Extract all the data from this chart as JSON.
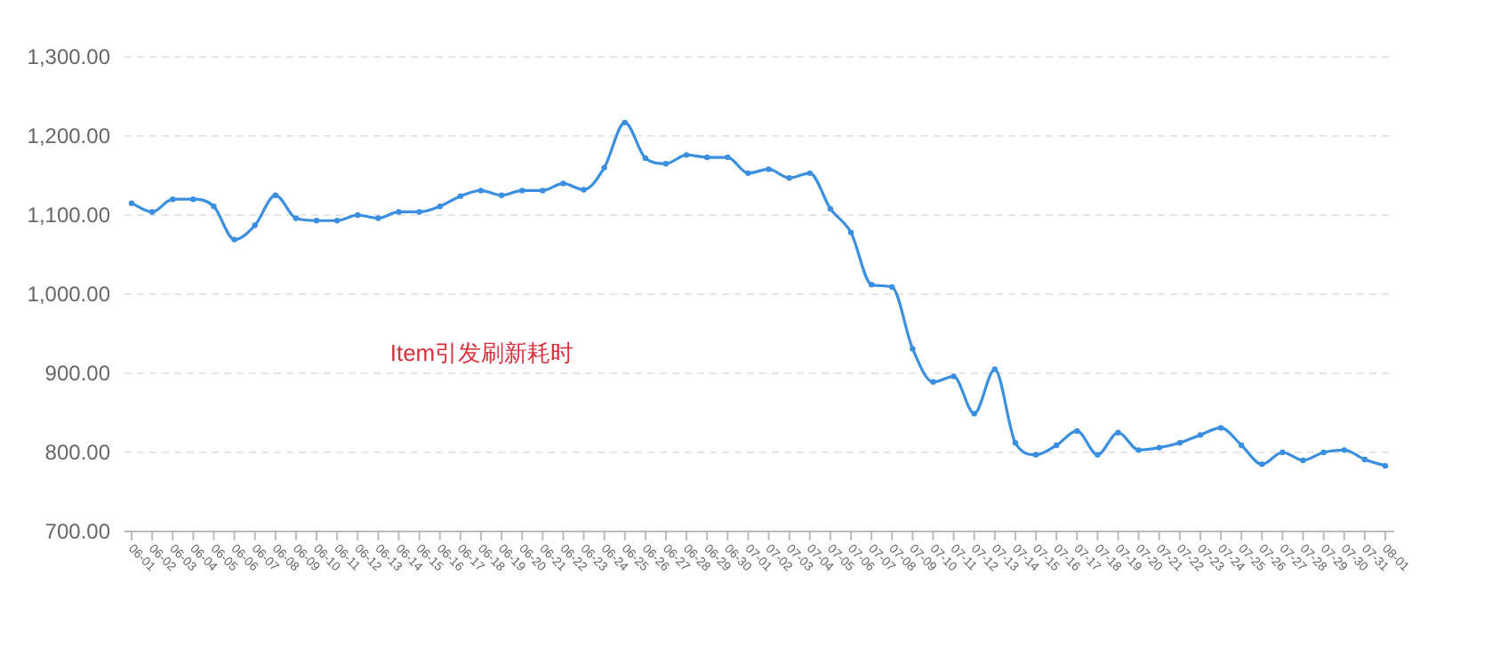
{
  "chart_data": {
    "type": "line",
    "title": "Item引发刷新耗时",
    "categories": [
      "06-01",
      "06-02",
      "06-03",
      "06-04",
      "06-05",
      "06-06",
      "06-07",
      "06-08",
      "06-09",
      "06-10",
      "06-11",
      "06-12",
      "06-13",
      "06-14",
      "06-15",
      "06-16",
      "06-17",
      "06-18",
      "06-19",
      "06-20",
      "06-21",
      "06-22",
      "06-23",
      "06-24",
      "06-25",
      "06-26",
      "06-27",
      "06-28",
      "06-29",
      "06-30",
      "07-01",
      "07-02",
      "07-03",
      "07-04",
      "07-05",
      "07-06",
      "07-07",
      "07-08",
      "07-09",
      "07-10",
      "07-11",
      "07-12",
      "07-13",
      "07-14",
      "07-15",
      "07-16",
      "07-17",
      "07-18",
      "07-19",
      "07-20",
      "07-21",
      "07-22",
      "07-23",
      "07-24",
      "07-25",
      "07-26",
      "07-27",
      "07-28",
      "07-29",
      "07-30",
      "07-31",
      "08-01"
    ],
    "series": [
      {
        "color": "#3b8fe0",
        "values": [
          1115,
          1104,
          1120,
          1120,
          1111,
          1069,
          1087,
          1125,
          1096,
          1093,
          1093,
          1100,
          1096,
          1104,
          1104,
          1111,
          1124,
          1131,
          1125,
          1131,
          1131,
          1140,
          1132,
          1160,
          1217,
          1172,
          1165,
          1176,
          1173,
          1173,
          1153,
          1158,
          1147,
          1153,
          1108,
          1078,
          1012,
          1009,
          931,
          889,
          896,
          849,
          905,
          812,
          797,
          809,
          827,
          797,
          825,
          803,
          806,
          812,
          822,
          831,
          809,
          785,
          800,
          790,
          800,
          803,
          791,
          783
        ]
      }
    ],
    "ylim": [
      700,
      1300
    ],
    "yticks": [
      {
        "value": 700,
        "label": "700.00"
      },
      {
        "value": 800,
        "label": "800.00"
      },
      {
        "value": 900,
        "label": "900.00"
      },
      {
        "value": 1000,
        "label": "1,000.00"
      },
      {
        "value": 1100,
        "label": "1,100.00"
      },
      {
        "value": 1200,
        "label": "1,200.00"
      },
      {
        "value": 1300,
        "label": "1,300.00"
      }
    ],
    "grid": "y",
    "marker": "circle",
    "line_style": "solid"
  }
}
